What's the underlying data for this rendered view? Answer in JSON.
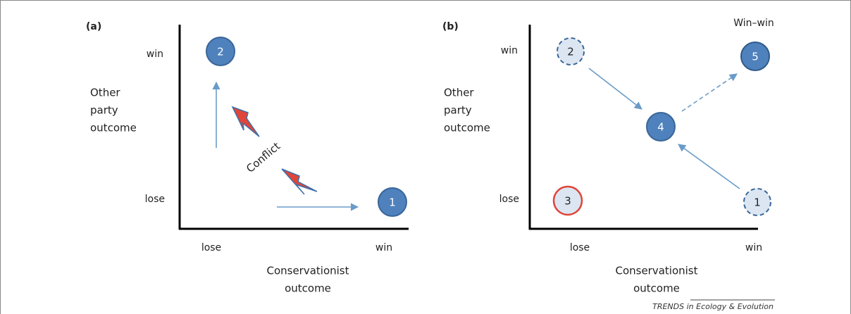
{
  "panels": [
    {
      "label": "(a)",
      "y_axis_label": [
        "Other",
        "party",
        "outcome"
      ],
      "y_ticks": [
        "win",
        "lose"
      ],
      "x_ticks": [
        "lose",
        "win"
      ],
      "x_axis_label": [
        "Conservationist",
        "outcome"
      ],
      "nodes": [
        {
          "label": "2"
        },
        {
          "label": "1"
        }
      ],
      "annotation": "Conflict"
    },
    {
      "label": "(b)",
      "y_axis_label": [
        "Other",
        "party",
        "outcome"
      ],
      "y_ticks": [
        "win",
        "lose"
      ],
      "x_ticks": [
        "lose",
        "win"
      ],
      "x_axis_label": [
        "Conservationist",
        "outcome"
      ],
      "nodes": [
        {
          "label": "2"
        },
        {
          "label": "5"
        },
        {
          "label": "4"
        },
        {
          "label": "3"
        },
        {
          "label": "1"
        }
      ],
      "annotation": "Win–win"
    }
  ],
  "footer": "TRENDS in Ecology & Evolution"
}
